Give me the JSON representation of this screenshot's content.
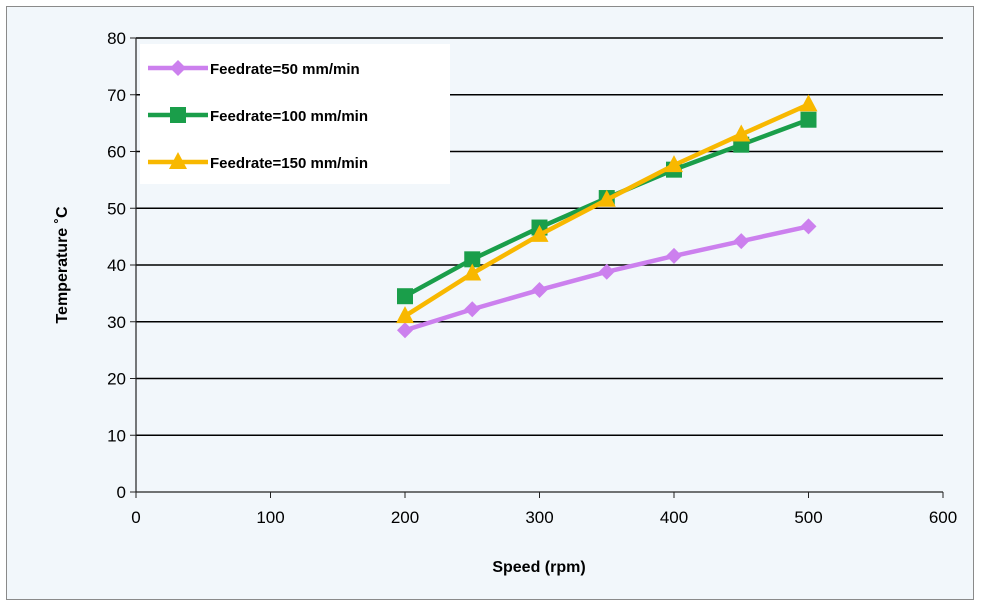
{
  "chart_data": {
    "type": "line",
    "title": "",
    "xlabel": "Speed (rpm)",
    "ylabel": "Temperature ˚C",
    "xlim": [
      0,
      600
    ],
    "ylim": [
      0,
      80
    ],
    "xticks": [
      "0",
      "100",
      "200",
      "300",
      "400",
      "500",
      "600"
    ],
    "yticks": [
      "0",
      "10",
      "20",
      "30",
      "40",
      "50",
      "60",
      "70",
      "80"
    ],
    "grid": "horizontal",
    "legend_position": "top-left",
    "series": [
      {
        "name": "Feedrate=50 mm/min",
        "color": "#cc80ee",
        "marker": "diamond",
        "x": [
          200,
          250,
          300,
          350,
          400,
          450,
          500
        ],
        "y": [
          28.5,
          32.2,
          35.6,
          38.8,
          41.6,
          44.2,
          46.8
        ]
      },
      {
        "name": "Feedrate=100 mm/min",
        "color": "#1a9e4a",
        "marker": "square",
        "x": [
          200,
          250,
          300,
          350,
          400,
          450,
          500
        ],
        "y": [
          34.5,
          41,
          46.6,
          51.8,
          56.8,
          61.2,
          65.6
        ]
      },
      {
        "name": "Feedrate=150 mm/min",
        "color": "#f8b800",
        "marker": "triangle",
        "x": [
          200,
          250,
          300,
          350,
          400,
          450,
          500
        ],
        "y": [
          31,
          38.5,
          45.3,
          51.5,
          57.6,
          63,
          68.3
        ]
      }
    ]
  }
}
